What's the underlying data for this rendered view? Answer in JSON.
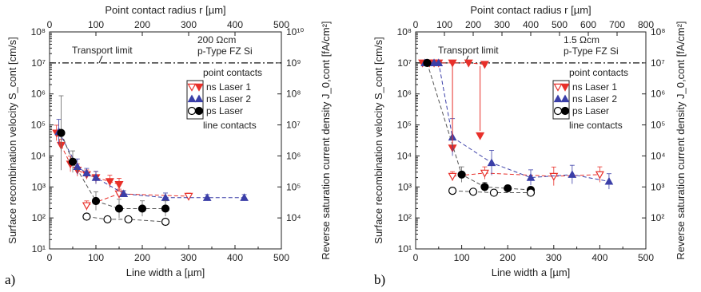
{
  "chart_data": [
    {
      "panel": "a)",
      "type": "scatter",
      "xlabel": "Line width a [µm]",
      "xlabel_top": "Point contact radius r [µm]",
      "ylabel": "Surface recombination velocity S_cont [cm/s]",
      "ylabel_right": "Reverse saturation current density J_0,cont [fA/cm²]",
      "xlim": [
        0,
        500
      ],
      "xticks": [
        "0",
        "100",
        "200",
        "300",
        "400",
        "500"
      ],
      "xlim_top": [
        0,
        500
      ],
      "xticks_top": [
        "0",
        "100",
        "200",
        "300",
        "400",
        "500"
      ],
      "ylim": [
        10,
        100000000
      ],
      "yscale": "log",
      "yticks": [
        "10¹",
        "10²",
        "10³",
        "10⁴",
        "10⁵",
        "10⁶",
        "10⁷",
        "10⁸"
      ],
      "ylim_right": [
        1000,
        10000000000
      ],
      "yticks_right": [
        "10⁴",
        "10⁵",
        "10⁶",
        "10⁷",
        "10⁸",
        "10⁹",
        "10¹⁰"
      ],
      "transport_limit": 10000000,
      "transport_label": "Transport limit",
      "annotation_lines": [
        "200 Ωcm",
        "p-Type FZ Si"
      ],
      "legend": {
        "header_top": "point contacts",
        "items": [
          "ns Laser 1",
          "ns Laser 2",
          "ps Laser"
        ],
        "header_bottom": "line contacts"
      },
      "series": [
        {
          "name": "ns Laser 1",
          "group": "point contacts",
          "color": "#e8302a",
          "marker": "triangle-down-open",
          "x": [
            80,
            150,
            300
          ],
          "y": [
            250,
            600,
            500
          ],
          "err": [
            0.15,
            0.15,
            0.1
          ]
        },
        {
          "name": "ns Laser 1",
          "group": "line contacts",
          "color": "#e8302a",
          "marker": "triangle-down",
          "x": [
            15,
            25,
            45,
            60,
            80,
            100,
            130,
            150
          ],
          "y": [
            55000,
            22000,
            5500,
            3500,
            2500,
            2000,
            1500,
            1200
          ],
          "err": [
            0.25,
            0.2,
            0.25,
            0.2,
            0.15,
            0.2,
            0.2,
            0.2
          ]
        },
        {
          "name": "ns Laser 2",
          "group": "point contacts",
          "color": "#3b3fa8",
          "marker": "triangle-up",
          "x": [
            20,
            60,
            80,
            100,
            160,
            250,
            340,
            420
          ],
          "y": [
            60000,
            4500,
            2800,
            2000,
            600,
            450,
            450,
            450
          ],
          "err": [
            0.4,
            0.25,
            0.15,
            0.2,
            0.1,
            0.15,
            0.1,
            0.1
          ]
        },
        {
          "name": "ps Laser",
          "group": "line contacts",
          "color": "#000000",
          "marker": "circle",
          "x": [
            25,
            50,
            100,
            150,
            200,
            250
          ],
          "y": [
            55000,
            6500,
            350,
            200,
            200,
            200
          ],
          "err": [
            1.2,
            0.35,
            0.3,
            0.3,
            0.25,
            0.25
          ]
        },
        {
          "name": "ps Laser",
          "group": "point contacts",
          "color": "#000000",
          "marker": "circle-open",
          "x": [
            80,
            125,
            170,
            250
          ],
          "y": [
            110,
            90,
            90,
            75
          ],
          "err": [
            0.1,
            0.1,
            0.08,
            0.08
          ]
        }
      ]
    },
    {
      "panel": "b)",
      "type": "scatter",
      "xlabel": "Line width a [µm]",
      "xlabel_top": "Point contact radius r [µm]",
      "ylabel": "Surface recombination velocity S_cont [cm/s]",
      "ylabel_right": "Reverse saturation current density J_0,cont [fA/cm²]",
      "xlim": [
        0,
        500
      ],
      "xticks": [
        "0",
        "100",
        "200",
        "300",
        "400",
        "500"
      ],
      "xlim_top": [
        0,
        800
      ],
      "xticks_top": [
        "0",
        "100",
        "200",
        "300",
        "400",
        "500",
        "600",
        "700",
        "800"
      ],
      "ylim": [
        10,
        100000000
      ],
      "yscale": "log",
      "yticks": [
        "10¹",
        "10²",
        "10³",
        "10⁴",
        "10⁵",
        "10⁶",
        "10⁷",
        "10⁸"
      ],
      "ylim_right": [
        10,
        100000000
      ],
      "yticks_right": [
        "10²",
        "10³",
        "10⁴",
        "10⁵",
        "10⁶",
        "10⁷",
        "10⁸"
      ],
      "transport_limit": 10000000,
      "transport_label": "Transport limit",
      "annotation_lines": [
        "1.5 Ωcm",
        "p-Type FZ Si"
      ],
      "legend": {
        "header_top": "point contacts",
        "items": [
          "ns Laser 1",
          "ns Laser 2",
          "ps Laser"
        ],
        "header_bottom": "line contacts"
      },
      "series": [
        {
          "name": "ns Laser 1",
          "group": "point contacts",
          "color": "#e8302a",
          "marker": "triangle-down-open",
          "x": [
            80,
            150,
            300,
            400
          ],
          "y": [
            2200,
            2800,
            2200,
            2500
          ],
          "err": [
            0.15,
            0.2,
            0.3,
            0.25
          ]
        },
        {
          "name": "ns Laser 1",
          "group": "line contacts",
          "color": "#e8302a",
          "marker": "triangle-down",
          "x": [
            15,
            30,
            40,
            50,
            80,
            115,
            150
          ],
          "y": [
            10000000,
            10000000,
            10000000,
            10000000,
            10000000,
            10000000,
            9000000
          ],
          "err": [
            0,
            0,
            0,
            0,
            0,
            0,
            0
          ]
        },
        {
          "name": "ns Laser 1",
          "group": "drop",
          "color": "#e8302a",
          "marker": "triangle-down",
          "x": [
            80,
            140
          ],
          "y": [
            18000,
            45000
          ],
          "err": [
            0,
            0
          ]
        },
        {
          "name": "ns Laser 2",
          "group": "point contacts",
          "color": "#3b3fa8",
          "marker": "triangle-up",
          "x": [
            20,
            40,
            50,
            80,
            165,
            250,
            340,
            420
          ],
          "y": [
            10000000,
            10000000,
            10000000,
            40000,
            6000,
            2000,
            2500,
            1500
          ],
          "err": [
            0,
            0,
            0,
            0.6,
            0.4,
            0.25,
            0.3,
            0.25
          ]
        },
        {
          "name": "ps Laser",
          "group": "line contacts",
          "color": "#000000",
          "marker": "circle",
          "x": [
            25,
            100,
            150,
            200,
            250
          ],
          "y": [
            10000000,
            2500,
            1000,
            900,
            800
          ],
          "err": [
            0,
            0.25,
            0.15,
            0.1,
            0.1
          ]
        },
        {
          "name": "ps Laser",
          "group": "point contacts",
          "color": "#000000",
          "marker": "circle-open",
          "x": [
            80,
            125,
            170,
            250
          ],
          "y": [
            750,
            700,
            650,
            650
          ],
          "err": [
            0.1,
            0.1,
            0.08,
            0.08
          ]
        }
      ]
    }
  ]
}
